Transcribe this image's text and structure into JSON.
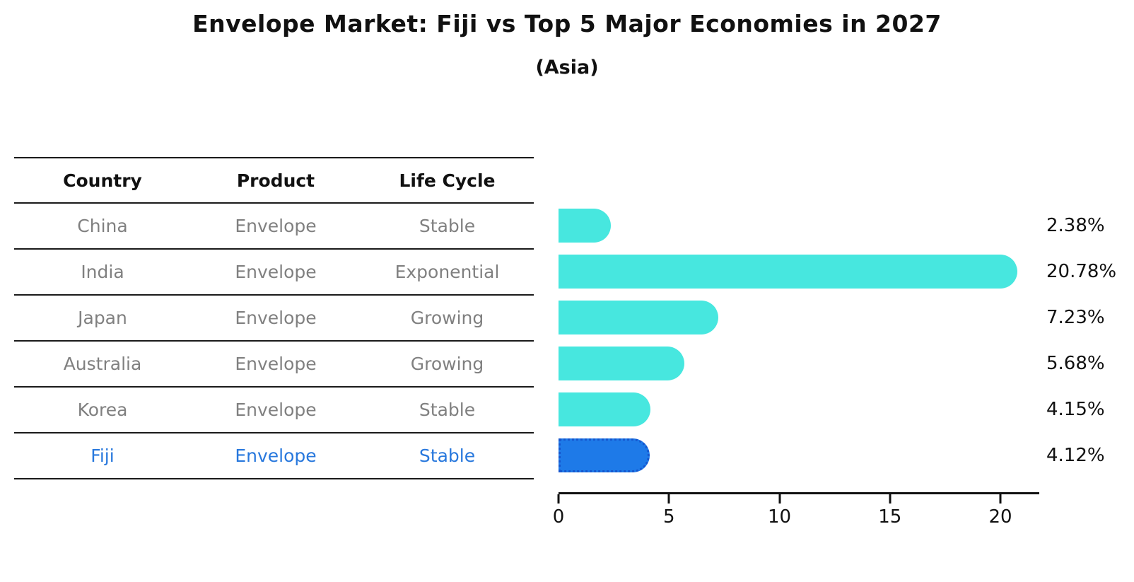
{
  "title": "Envelope Market: Fiji vs Top 5 Major Economies in 2027",
  "subtitle": "(Asia)",
  "table": {
    "headers": [
      "Country",
      "Product",
      "Life Cycle"
    ],
    "rows": [
      {
        "country": "China",
        "product": "Envelope",
        "life_cycle": "Stable"
      },
      {
        "country": "India",
        "product": "Envelope",
        "life_cycle": "Exponential"
      },
      {
        "country": "Japan",
        "product": "Envelope",
        "life_cycle": "Growing"
      },
      {
        "country": "Australia",
        "product": "Envelope",
        "life_cycle": "Growing"
      },
      {
        "country": "Korea",
        "product": "Envelope",
        "life_cycle": "Stable"
      },
      {
        "country": "Fiji",
        "product": "Envelope",
        "life_cycle": "Stable"
      }
    ],
    "highlight_row": "Fiji"
  },
  "chart_data": {
    "type": "bar",
    "orientation": "horizontal",
    "title": "Envelope Market: Fiji vs Top 5 Major Economies in 2027",
    "subtitle": "(Asia)",
    "categories": [
      "China",
      "India",
      "Japan",
      "Australia",
      "Korea",
      "Fiji"
    ],
    "values": [
      2.38,
      20.78,
      7.23,
      5.68,
      4.15,
      4.12
    ],
    "value_labels": [
      "2.38%",
      "20.78%",
      "7.23%",
      "5.68%",
      "4.15%",
      "4.12%"
    ],
    "x_ticks": [
      0,
      5,
      10,
      15,
      20
    ],
    "xlim": [
      0,
      21.75
    ],
    "grid": false,
    "legend": "none",
    "highlight_index": 5,
    "colors": {
      "bar": "#47E7DF",
      "highlight": "#1E7AE8",
      "highlight_border": "#1556CE",
      "highlight_text": "#2878DD",
      "row_text": "#808080"
    }
  }
}
